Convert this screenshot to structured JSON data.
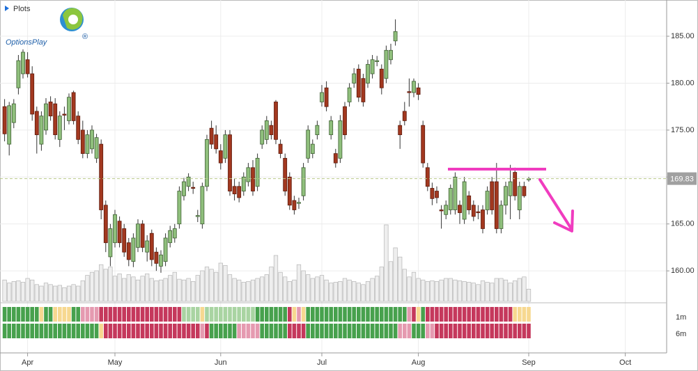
{
  "header": {
    "plots": "Plots",
    "brand": "OptionsPlay",
    "brand_mark": "®"
  },
  "chart_data": {
    "type": "candlestick",
    "xlim": [
      -1,
      144
    ],
    "xticks": [
      {
        "value": 5,
        "label": "Apr"
      },
      {
        "value": 24,
        "label": "May"
      },
      {
        "value": 47,
        "label": "Jun"
      },
      {
        "value": 69,
        "label": "Jul"
      },
      {
        "value": 90,
        "label": "Aug"
      },
      {
        "value": 114,
        "label": "Sep"
      },
      {
        "value": 135,
        "label": "Oct"
      }
    ],
    "ylim": [
      156.6,
      188.86
    ],
    "yticks": [
      {
        "value": 160,
        "label": "160.00"
      },
      {
        "value": 165,
        "label": "165.00"
      },
      {
        "value": 170,
        "label": "170.00"
      },
      {
        "value": 175,
        "label": "175.00"
      },
      {
        "value": 180,
        "label": "180.00"
      },
      {
        "value": 185,
        "label": "185.00"
      }
    ],
    "grid": true,
    "up_color": "#8fbf7c",
    "down_color": "#a2381f",
    "last_price": 169.83,
    "candles": [
      [
        177.5,
        178.3,
        173.8,
        174.6
      ],
      [
        173.5,
        178.0,
        172.3,
        177.6
      ],
      [
        175.8,
        178.3,
        175.2,
        177.8
      ],
      [
        179.5,
        183.0,
        178.8,
        182.4
      ],
      [
        181.0,
        183.6,
        180.5,
        183.3
      ],
      [
        182.5,
        183.3,
        180.6,
        181.0
      ],
      [
        181.0,
        181.8,
        176.0,
        176.7
      ],
      [
        177.0,
        177.5,
        172.5,
        174.5
      ],
      [
        173.5,
        177.0,
        172.8,
        176.5
      ],
      [
        175.0,
        178.4,
        174.5,
        177.8
      ],
      [
        178.0,
        178.6,
        176.0,
        176.5
      ],
      [
        177.8,
        178.4,
        174.0,
        174.5
      ],
      [
        174.0,
        177.0,
        173.2,
        176.5
      ],
      [
        176.7,
        177.5,
        175.0,
        176.6
      ],
      [
        176.0,
        178.9,
        175.6,
        178.5
      ],
      [
        179.0,
        179.2,
        175.6,
        176.0
      ],
      [
        176.5,
        177.0,
        173.5,
        174.0
      ],
      [
        175.0,
        176.0,
        172.0,
        172.5
      ],
      [
        172.5,
        175.0,
        172.0,
        174.5
      ],
      [
        173.0,
        175.5,
        172.5,
        175.0
      ],
      [
        172.0,
        174.6,
        171.5,
        174.2
      ],
      [
        173.5,
        174.0,
        165.5,
        166.5
      ],
      [
        167.0,
        167.5,
        162.0,
        163.0
      ],
      [
        161.5,
        165.0,
        160.5,
        164.5
      ],
      [
        163.0,
        166.5,
        162.5,
        166.0
      ],
      [
        165.3,
        165.8,
        162.5,
        163.0
      ],
      [
        164.5,
        165.0,
        161.5,
        162.0
      ],
      [
        163.0,
        163.5,
        160.5,
        161.2
      ],
      [
        161.0,
        164.0,
        160.4,
        163.5
      ],
      [
        162.5,
        165.5,
        162.0,
        165.0
      ],
      [
        165.0,
        165.4,
        162.0,
        162.5
      ],
      [
        162.0,
        163.8,
        161.0,
        163.2
      ],
      [
        164.0,
        164.4,
        160.5,
        161.2
      ],
      [
        162.0,
        162.5,
        160.0,
        160.8
      ],
      [
        160.5,
        162.2,
        159.8,
        161.7
      ],
      [
        161.0,
        164.0,
        160.5,
        163.5
      ],
      [
        163.0,
        164.8,
        162.5,
        164.3
      ],
      [
        163.5,
        165.0,
        163.0,
        164.5
      ],
      [
        165.0,
        169.0,
        164.5,
        168.5
      ],
      [
        168.0,
        169.9,
        167.5,
        169.5
      ],
      [
        169.0,
        170.4,
        168.5,
        170.0
      ],
      [
        168.9,
        169.5,
        168.2,
        168.8
      ],
      [
        165.8,
        166.5,
        165.2,
        165.9
      ],
      [
        165.0,
        169.4,
        164.5,
        169.0
      ],
      [
        169.0,
        174.5,
        168.5,
        174.0
      ],
      [
        175.2,
        176.0,
        173.0,
        173.5
      ],
      [
        174.5,
        175.5,
        172.5,
        173.0
      ],
      [
        172.8,
        173.5,
        170.8,
        171.5
      ],
      [
        172.0,
        175.0,
        171.5,
        174.5
      ],
      [
        174.5,
        175.0,
        168.0,
        168.5
      ],
      [
        169.0,
        169.8,
        167.5,
        168.2
      ],
      [
        169.0,
        169.5,
        167.3,
        167.8
      ],
      [
        168.5,
        170.5,
        168.0,
        170.0
      ],
      [
        169.5,
        171.5,
        169.0,
        171.0
      ],
      [
        171.0,
        171.8,
        168.0,
        168.5
      ],
      [
        169.0,
        172.5,
        168.5,
        172.0
      ],
      [
        173.5,
        175.5,
        173.0,
        175.0
      ],
      [
        174.0,
        176.5,
        173.5,
        176.0
      ],
      [
        175.5,
        176.0,
        174.0,
        174.5
      ],
      [
        178.0,
        178.2,
        173.5,
        174.0
      ],
      [
        173.5,
        174.0,
        172.0,
        172.5
      ],
      [
        172.0,
        172.5,
        168.0,
        168.5
      ],
      [
        170.0,
        170.5,
        166.5,
        167.0
      ],
      [
        167.5,
        168.0,
        166.0,
        166.5
      ],
      [
        167.2,
        167.8,
        166.6,
        167.3
      ],
      [
        168.0,
        171.5,
        167.5,
        171.0
      ],
      [
        172.0,
        175.5,
        171.5,
        175.0
      ],
      [
        172.5,
        174.0,
        172.0,
        173.5
      ],
      [
        174.5,
        176.0,
        174.0,
        175.5
      ],
      [
        178.0,
        179.8,
        177.5,
        179.0
      ],
      [
        179.5,
        180.2,
        177.0,
        177.5
      ],
      [
        174.5,
        176.5,
        174.0,
        176.0
      ],
      [
        172.5,
        173.0,
        171.0,
        171.5
      ],
      [
        172.0,
        176.6,
        171.5,
        176.0
      ],
      [
        177.5,
        178.0,
        174.0,
        174.5
      ],
      [
        178.0,
        180.0,
        177.5,
        179.5
      ],
      [
        180.0,
        181.6,
        179.5,
        181.0
      ],
      [
        181.5,
        182.0,
        178.0,
        178.5
      ],
      [
        180.5,
        181.0,
        177.5,
        178.0
      ],
      [
        180.0,
        182.5,
        179.5,
        182.0
      ],
      [
        181.0,
        183.0,
        180.5,
        182.5
      ],
      [
        182.3,
        182.9,
        181.8,
        182.4
      ],
      [
        181.5,
        182.0,
        178.8,
        179.5
      ],
      [
        180.5,
        184.0,
        180.0,
        183.5
      ],
      [
        182.5,
        184.2,
        182.0,
        183.5
      ],
      [
        184.5,
        186.8,
        184.0,
        185.5
      ],
      [
        175.5,
        176.0,
        173.0,
        174.5
      ],
      [
        177.0,
        178.0,
        175.5,
        176.0
      ],
      [
        179.1,
        180.5,
        177.5,
        179.0
      ],
      [
        179.0,
        180.5,
        178.5,
        180.2
      ],
      [
        179.5,
        180.0,
        178.2,
        178.8
      ],
      [
        175.5,
        176.0,
        171.0,
        171.5
      ],
      [
        171.0,
        171.5,
        168.5,
        169.0
      ],
      [
        168.8,
        169.4,
        167.0,
        167.7
      ],
      [
        168.5,
        169.0,
        167.2,
        167.8
      ],
      [
        166.5,
        167.0,
        164.5,
        166.4
      ],
      [
        166.0,
        167.5,
        165.5,
        167.0
      ],
      [
        166.5,
        169.2,
        166.0,
        168.8
      ],
      [
        166.5,
        170.5,
        166.0,
        170.0
      ],
      [
        167.0,
        167.5,
        165.0,
        166.2
      ],
      [
        165.5,
        170.0,
        165.0,
        169.5
      ],
      [
        168.0,
        168.5,
        166.0,
        166.5
      ],
      [
        167.0,
        167.5,
        165.3,
        165.8
      ],
      [
        166.3,
        167.0,
        165.5,
        166.2
      ],
      [
        166.5,
        167.0,
        164.0,
        164.5
      ],
      [
        166.5,
        169.0,
        166.0,
        168.5
      ],
      [
        169.5,
        170.0,
        166.0,
        166.5
      ],
      [
        169.5,
        171.5,
        164.0,
        164.5
      ],
      [
        164.5,
        167.5,
        164.0,
        167.0
      ],
      [
        167.0,
        169.5,
        166.0,
        169.0
      ],
      [
        168.0,
        171.3,
        165.5,
        169.5
      ],
      [
        170.5,
        171.0,
        167.5,
        168.0
      ],
      [
        166.5,
        169.5,
        165.5,
        169.0
      ],
      [
        169.0,
        169.5,
        167.8,
        168.0
      ],
      [
        169.7,
        170.0,
        169.5,
        169.83
      ]
    ],
    "volume": [
      28,
      24,
      26,
      27,
      25,
      30,
      28,
      22,
      20,
      24,
      22,
      20,
      21,
      18,
      20,
      22,
      20,
      27,
      34,
      38,
      40,
      48,
      42,
      45,
      33,
      36,
      30,
      35,
      32,
      28,
      33,
      36,
      30,
      27,
      28,
      30,
      34,
      38,
      29,
      28,
      30,
      26,
      34,
      40,
      45,
      42,
      38,
      50,
      47,
      35,
      30,
      28,
      25,
      26,
      28,
      30,
      32,
      35,
      45,
      60,
      38,
      32,
      26,
      28,
      48,
      40,
      35,
      30,
      32,
      34,
      28,
      24,
      25,
      26,
      30,
      28,
      26,
      24,
      22,
      26,
      30,
      33,
      45,
      100,
      52,
      70,
      58,
      42,
      32,
      38,
      30,
      28,
      26,
      27,
      26,
      28,
      30,
      30,
      28,
      27,
      26,
      25,
      24,
      22,
      27,
      25,
      24,
      30,
      30,
      28,
      24,
      27,
      30,
      32,
      16
    ],
    "rating_colors": {
      "g": "#47a14d",
      "l": "#a9d4a2",
      "y": "#f7d890",
      "p": "#e59ab0",
      "r": "#c5385c"
    },
    "ratings": [
      {
        "name": "1m",
        "codes": [
          "g",
          "g",
          "g",
          "g",
          "g",
          "g",
          "g",
          "g",
          "y",
          "g",
          "g",
          "y",
          "y",
          "y",
          "y",
          "g",
          "g",
          "p",
          "p",
          "p",
          "p",
          "r",
          "r",
          "r",
          "r",
          "r",
          "r",
          "r",
          "r",
          "r",
          "r",
          "r",
          "r",
          "r",
          "r",
          "r",
          "r",
          "r",
          "r",
          "l",
          "l",
          "l",
          "l",
          "y",
          "l",
          "l",
          "l",
          "l",
          "l",
          "l",
          "l",
          "l",
          "l",
          "l",
          "l",
          "g",
          "g",
          "g",
          "g",
          "g",
          "g",
          "g",
          "r",
          "y",
          "p",
          "y",
          "g",
          "g",
          "g",
          "g",
          "g",
          "g",
          "g",
          "g",
          "g",
          "g",
          "g",
          "g",
          "g",
          "g",
          "g",
          "g",
          "g",
          "g",
          "g",
          "g",
          "g",
          "g",
          "p",
          "r",
          "y",
          "g",
          "r",
          "r",
          "r",
          "r",
          "r",
          "r",
          "r",
          "r",
          "r",
          "r",
          "r",
          "r",
          "r",
          "r",
          "r",
          "r",
          "r",
          "r",
          "r",
          "y",
          "y",
          "y",
          "y"
        ]
      },
      {
        "name": "6m",
        "codes": [
          "g",
          "g",
          "g",
          "g",
          "g",
          "g",
          "g",
          "g",
          "g",
          "g",
          "g",
          "g",
          "g",
          "g",
          "g",
          "g",
          "g",
          "g",
          "g",
          "g",
          "g",
          "y",
          "r",
          "r",
          "r",
          "r",
          "r",
          "r",
          "r",
          "r",
          "r",
          "r",
          "r",
          "r",
          "r",
          "r",
          "r",
          "r",
          "r",
          "r",
          "r",
          "r",
          "r",
          "p",
          "r",
          "g",
          "g",
          "g",
          "g",
          "g",
          "g",
          "p",
          "p",
          "p",
          "p",
          "p",
          "g",
          "g",
          "g",
          "g",
          "g",
          "g",
          "r",
          "r",
          "r",
          "r",
          "g",
          "g",
          "g",
          "g",
          "g",
          "g",
          "g",
          "g",
          "g",
          "g",
          "g",
          "g",
          "g",
          "g",
          "g",
          "g",
          "g",
          "g",
          "g",
          "g",
          "p",
          "p",
          "p",
          "g",
          "g",
          "g",
          "p",
          "p",
          "r",
          "r",
          "r",
          "r",
          "r",
          "r",
          "r",
          "r",
          "r",
          "r",
          "r",
          "r",
          "r",
          "r",
          "r",
          "r",
          "r",
          "r",
          "r",
          "r",
          "r"
        ]
      }
    ]
  }
}
